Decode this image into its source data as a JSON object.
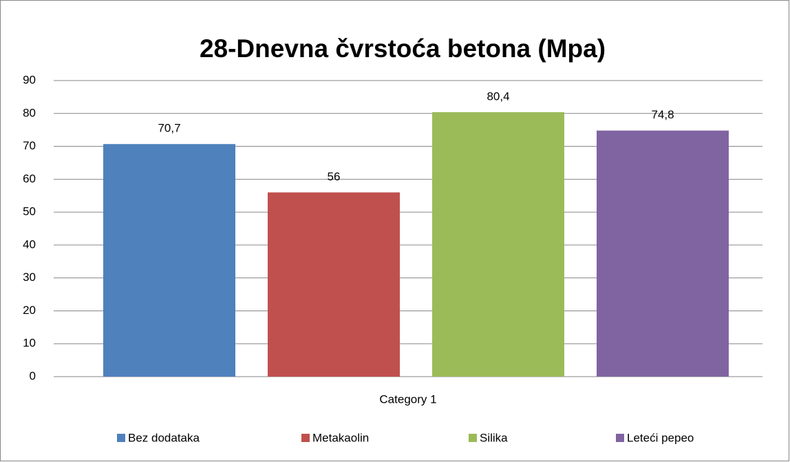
{
  "chart_data": {
    "type": "bar",
    "title": "28-Dnevna čvrstoća betona (Mpa)",
    "categories": [
      "Category 1"
    ],
    "series": [
      {
        "name": "Bez dodataka",
        "color": "#4f81bd",
        "values": [
          70.7
        ],
        "value_labels": [
          "70,7"
        ]
      },
      {
        "name": "Metakaolin",
        "color": "#c0504d",
        "values": [
          56
        ],
        "value_labels": [
          "56"
        ]
      },
      {
        "name": "Silika",
        "color": "#9bbb59",
        "values": [
          80.4
        ],
        "value_labels": [
          "80,4"
        ]
      },
      {
        "name": "Leteći pepeo",
        "color": "#8064a2",
        "values": [
          74.8
        ],
        "value_labels": [
          "74,8"
        ]
      }
    ],
    "ylim": [
      0,
      90
    ],
    "yticks": [
      0,
      10,
      20,
      30,
      40,
      50,
      60,
      70,
      80,
      90
    ],
    "grid": true,
    "legend": "bottom"
  }
}
